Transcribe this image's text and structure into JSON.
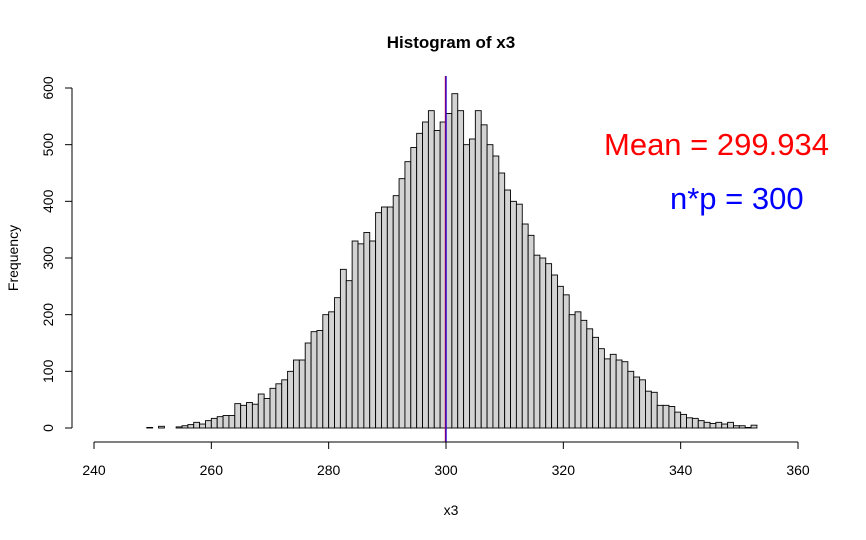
{
  "chart_data": {
    "type": "bar",
    "title": "Histogram of x3",
    "xlabel": "x3",
    "ylabel": "Frequency",
    "xlim": [
      240,
      360
    ],
    "ylim": [
      0,
      600
    ],
    "x_ticks": [
      "240",
      "260",
      "280",
      "300",
      "320",
      "340",
      "360"
    ],
    "y_ticks": [
      "0",
      "100",
      "200",
      "300",
      "400",
      "500",
      "600"
    ],
    "bin_width": 1,
    "bins_start": [
      242,
      243,
      244,
      245,
      246,
      247,
      248,
      249,
      250,
      251,
      252,
      253,
      254,
      255,
      256,
      257,
      258,
      259,
      260,
      261,
      262,
      263,
      264,
      265,
      266,
      267,
      268,
      269,
      270,
      271,
      272,
      273,
      274,
      275,
      276,
      277,
      278,
      279,
      280,
      281,
      282,
      283,
      284,
      285,
      286,
      287,
      288,
      289,
      290,
      291,
      292,
      293,
      294,
      295,
      296,
      297,
      298,
      299,
      300,
      301,
      302,
      303,
      304,
      305,
      306,
      307,
      308,
      309,
      310,
      311,
      312,
      313,
      314,
      315,
      316,
      317,
      318,
      319,
      320,
      321,
      322,
      323,
      324,
      325,
      326,
      327,
      328,
      329,
      330,
      331,
      332,
      333,
      334,
      335,
      336,
      337,
      338,
      339,
      340,
      341,
      342,
      343,
      344,
      345,
      346,
      347,
      348,
      349,
      350,
      351,
      352,
      353,
      354,
      355,
      356,
      357,
      358,
      359
    ],
    "values": [
      0,
      0,
      0,
      0,
      0,
      0,
      0,
      1,
      0,
      3,
      0,
      0,
      2,
      4,
      6,
      10,
      7,
      13,
      17,
      20,
      22,
      22,
      43,
      40,
      45,
      42,
      60,
      52,
      70,
      78,
      85,
      100,
      120,
      120,
      150,
      170,
      172,
      200,
      205,
      230,
      280,
      260,
      330,
      325,
      345,
      330,
      380,
      390,
      390,
      410,
      440,
      470,
      495,
      520,
      540,
      560,
      525,
      540,
      555,
      590,
      560,
      500,
      510,
      560,
      535,
      500,
      480,
      450,
      420,
      400,
      395,
      360,
      340,
      305,
      300,
      290,
      270,
      250,
      235,
      200,
      205,
      190,
      175,
      160,
      140,
      122,
      130,
      120,
      117,
      100,
      90,
      85,
      65,
      63,
      40,
      40,
      38,
      28,
      24,
      18,
      17,
      13,
      10,
      8,
      10,
      7,
      10,
      4,
      4,
      1,
      5,
      0,
      0,
      0,
      0,
      0,
      0,
      0
    ],
    "vlines": [
      {
        "x": 299.934,
        "color": "#ff0000"
      },
      {
        "x": 300,
        "color": "#0000ff"
      }
    ],
    "annotations": [
      {
        "text": "Mean = 299.934",
        "color": "#ff0000"
      },
      {
        "text": "n*p = 300",
        "color": "#0000ff"
      }
    ],
    "bar_fill": "#d3d3d3",
    "bar_stroke": "#000000",
    "grid": false
  }
}
